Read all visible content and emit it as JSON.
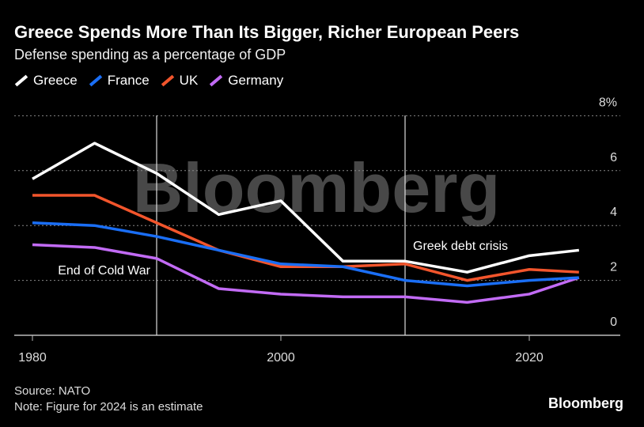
{
  "header": {
    "title": "Greece Spends More Than Its Bigger, Richer European Peers",
    "subtitle": "Defense spending as a percentage of GDP"
  },
  "footer": {
    "source": "Source: NATO",
    "note": "Note: Figure for 2024 is an estimate",
    "brand": "Bloomberg",
    "watermark": "Bloomberg"
  },
  "chart_data": {
    "type": "line",
    "title": "Greece Spends More Than Its Bigger, Richer European Peers",
    "subtitle": "Defense spending as a percentage of GDP",
    "x": [
      1980,
      1985,
      1990,
      1995,
      2000,
      2005,
      2010,
      2015,
      2020,
      2024
    ],
    "xticks": [
      1980,
      2000,
      2020
    ],
    "xtick_labels": [
      "1980",
      "2000",
      "2020"
    ],
    "yticks": [
      0,
      2,
      4,
      6,
      8
    ],
    "ytick_labels": [
      "0",
      "2",
      "4",
      "6",
      "8%"
    ],
    "ylim": [
      0,
      8
    ],
    "xlim": [
      1980,
      2027
    ],
    "grid": true,
    "legend": "top-left",
    "series": [
      {
        "name": "Greece",
        "color": "#ffffff",
        "values": [
          5.7,
          7.0,
          5.9,
          4.4,
          4.9,
          2.7,
          2.7,
          2.3,
          2.9,
          3.1
        ]
      },
      {
        "name": "France",
        "color": "#1a6ef5",
        "values": [
          4.1,
          4.0,
          3.6,
          3.1,
          2.6,
          2.5,
          2.0,
          1.8,
          2.0,
          2.1
        ]
      },
      {
        "name": "UK",
        "color": "#f2552c",
        "values": [
          5.1,
          5.1,
          4.1,
          3.1,
          2.5,
          2.5,
          2.6,
          2.0,
          2.4,
          2.3
        ]
      },
      {
        "name": "Germany",
        "color": "#c26bf5",
        "values": [
          3.3,
          3.2,
          2.8,
          1.7,
          1.5,
          1.4,
          1.4,
          1.2,
          1.5,
          2.1
        ]
      }
    ],
    "annotations": [
      {
        "x": 1990,
        "text": "End of Cold War"
      },
      {
        "x": 2010,
        "text": "Greek debt crisis"
      }
    ]
  }
}
